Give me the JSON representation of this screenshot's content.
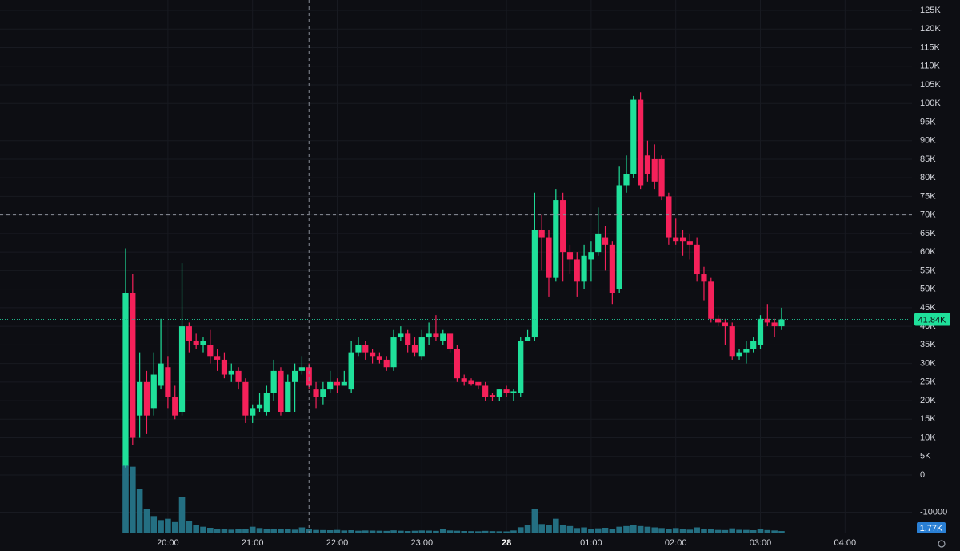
{
  "chart_data": {
    "type": "candlestick",
    "categories": [
      "19:30",
      "19:35",
      "19:40",
      "19:45",
      "19:50",
      "19:55",
      "20:00",
      "20:05",
      "20:10",
      "20:15",
      "20:20",
      "20:25",
      "20:30",
      "20:35",
      "20:40",
      "20:45",
      "20:50",
      "20:55",
      "21:00",
      "21:05",
      "21:10",
      "21:15",
      "21:20",
      "21:25",
      "21:30",
      "21:35",
      "21:40",
      "21:45",
      "21:50",
      "21:55",
      "22:00",
      "22:05",
      "22:10",
      "22:15",
      "22:20",
      "22:25",
      "22:30",
      "22:35",
      "22:40",
      "22:45",
      "22:50",
      "22:55",
      "23:00",
      "23:05",
      "23:10",
      "23:15",
      "23:20",
      "23:25",
      "23:30",
      "23:35",
      "23:40",
      "23:45",
      "23:50",
      "23:55",
      "00:00",
      "00:05",
      "00:10",
      "00:15",
      "00:20",
      "00:25",
      "00:30",
      "00:35",
      "00:40",
      "00:45",
      "00:50",
      "00:55",
      "01:00",
      "01:05",
      "01:10",
      "01:15",
      "01:20",
      "01:25",
      "01:30",
      "01:35",
      "01:40",
      "01:45",
      "01:50",
      "01:55",
      "02:00",
      "02:05",
      "02:10",
      "02:15",
      "02:20",
      "02:25",
      "02:30",
      "02:35",
      "02:40",
      "02:45",
      "02:50",
      "02:55",
      "03:00",
      "03:05",
      "03:10",
      "03:15"
    ],
    "open": [
      2500,
      49000,
      16000,
      25000,
      18000,
      24000,
      29000,
      21000,
      17000,
      40000,
      36000,
      35000,
      35000,
      32000,
      31000,
      27000,
      28000,
      25000,
      16000,
      18000,
      17000,
      22000,
      28000,
      17000,
      25000,
      28000,
      29000,
      23000,
      21000,
      23000,
      25000,
      24000,
      23000,
      33000,
      35000,
      33000,
      32000,
      31000,
      29000,
      37000,
      38000,
      35000,
      32000,
      37000,
      38000,
      36000,
      38000,
      34000,
      26000,
      25500,
      25000,
      24000,
      21500,
      21000,
      23000,
      22000,
      22000,
      36000,
      37000,
      66000,
      64000,
      53000,
      74000,
      60000,
      58000,
      52000,
      58000,
      60000,
      64000,
      62000,
      50000,
      78000,
      81000,
      101000,
      86000,
      85000,
      85000,
      75000,
      64000,
      64000,
      63000,
      62000,
      54000,
      52000,
      42000,
      41000,
      40000,
      32000,
      33000,
      34000,
      35000,
      42000,
      41000,
      40000
    ],
    "high": [
      61000,
      54000,
      33000,
      28000,
      33000,
      42000,
      32000,
      24000,
      57000,
      41000,
      38000,
      37000,
      39000,
      34000,
      33000,
      30000,
      29000,
      26000,
      19000,
      22000,
      24000,
      31000,
      29000,
      27000,
      30000,
      32000,
      30000,
      25000,
      25000,
      28000,
      26000,
      28000,
      36000,
      37000,
      36000,
      34000,
      33000,
      32000,
      39000,
      40000,
      39000,
      37000,
      39000,
      41000,
      43000,
      39000,
      38000,
      35000,
      27000,
      26000,
      25000,
      25000,
      22000,
      23000,
      24000,
      23000,
      37000,
      39000,
      76000,
      70000,
      66000,
      77000,
      76000,
      62000,
      60000,
      62000,
      63000,
      72000,
      67000,
      63000,
      83000,
      86000,
      102000,
      103000,
      90000,
      89000,
      86000,
      76000,
      69000,
      66000,
      65000,
      64000,
      56000,
      53000,
      43000,
      42000,
      41000,
      34000,
      36000,
      37000,
      43000,
      46000,
      42000,
      45000
    ],
    "low": [
      2000,
      8000,
      10000,
      11000,
      16000,
      23000,
      18000,
      15000,
      16000,
      33000,
      34000,
      33000,
      30000,
      28000,
      26000,
      25000,
      23000,
      14000,
      14000,
      17000,
      16000,
      20000,
      16000,
      17000,
      17000,
      27000,
      23000,
      18000,
      19000,
      22000,
      22000,
      24000,
      22000,
      32000,
      31000,
      30000,
      30000,
      28000,
      28000,
      36000,
      33000,
      32000,
      31000,
      35000,
      36000,
      35000,
      33000,
      25000,
      24000,
      24000,
      23000,
      20000,
      20000,
      20000,
      21000,
      20000,
      21000,
      36000,
      36000,
      55000,
      48000,
      52000,
      52000,
      54000,
      48000,
      50000,
      52000,
      59000,
      55000,
      46000,
      49000,
      76000,
      80000,
      77000,
      79000,
      77000,
      74000,
      62000,
      62000,
      59000,
      58000,
      52000,
      47000,
      41000,
      40000,
      35000,
      31000,
      31000,
      30000,
      33000,
      34000,
      40000,
      37000,
      39000
    ],
    "close": [
      49000,
      10000,
      25000,
      16000,
      27000,
      30000,
      21000,
      16000,
      40000,
      36000,
      35000,
      36000,
      32000,
      31000,
      27000,
      28000,
      25000,
      16000,
      18000,
      19000,
      22000,
      28000,
      17000,
      25000,
      28000,
      29000,
      24000,
      21000,
      23000,
      25000,
      24000,
      25000,
      33000,
      35000,
      33000,
      32000,
      31000,
      29000,
      37000,
      38000,
      35000,
      33000,
      37000,
      38000,
      37000,
      38000,
      34000,
      26000,
      25000,
      24500,
      24000,
      21000,
      21000,
      23000,
      22000,
      22500,
      36000,
      37000,
      66000,
      64000,
      53000,
      74000,
      60000,
      58000,
      52000,
      59000,
      60000,
      65000,
      62000,
      49000,
      78000,
      81000,
      101000,
      78000,
      81000,
      79000,
      75000,
      64000,
      63000,
      63000,
      62000,
      54000,
      52000,
      42000,
      41000,
      40000,
      32000,
      33000,
      34000,
      36000,
      42000,
      41000,
      40000,
      41840
    ],
    "volume": [
      51000,
      50000,
      33000,
      18000,
      13000,
      10000,
      11000,
      8500,
      27000,
      9000,
      6000,
      5000,
      4200,
      3600,
      3000,
      2800,
      3200,
      3000,
      5000,
      4000,
      3500,
      3600,
      3200,
      3000,
      2800,
      4500,
      3000,
      2600,
      2500,
      2400,
      2600,
      2200,
      2400,
      2000,
      2200,
      2100,
      2000,
      1900,
      2300,
      2000,
      1800,
      2000,
      2200,
      2100,
      1900,
      3500,
      2200,
      2000,
      1800,
      1700,
      1600,
      1900,
      1700,
      1600,
      1500,
      2200,
      4600,
      6000,
      18000,
      7000,
      6500,
      11000,
      6000,
      5500,
      4000,
      4500,
      3500,
      3800,
      4200,
      3000,
      5000,
      5500,
      6000,
      5500,
      5000,
      4500,
      4000,
      3000,
      4000,
      3000,
      2800,
      4500,
      3200,
      3500,
      2600,
      2500,
      3800,
      2700,
      2600,
      2400,
      3000,
      2500,
      2200,
      1770
    ],
    "up_color": "#1fe09a",
    "down_color": "#f5215a",
    "volume_color": "#246f82",
    "ylim": [
      -15700,
      127800
    ],
    "yticks": [
      {
        "value": 125000,
        "label": "125K"
      },
      {
        "value": 120000,
        "label": "120K"
      },
      {
        "value": 115000,
        "label": "115K"
      },
      {
        "value": 110000,
        "label": "110K"
      },
      {
        "value": 105000,
        "label": "105K"
      },
      {
        "value": 100000,
        "label": "100K"
      },
      {
        "value": 95000,
        "label": "95K"
      },
      {
        "value": 90000,
        "label": "90K"
      },
      {
        "value": 85000,
        "label": "85K"
      },
      {
        "value": 80000,
        "label": "80K"
      },
      {
        "value": 75000,
        "label": "75K"
      },
      {
        "value": 70000,
        "label": "70K"
      },
      {
        "value": 65000,
        "label": "65K"
      },
      {
        "value": 60000,
        "label": "60K"
      },
      {
        "value": 55000,
        "label": "55K"
      },
      {
        "value": 50000,
        "label": "50K"
      },
      {
        "value": 45000,
        "label": "45K"
      },
      {
        "value": 40000,
        "label": "40K"
      },
      {
        "value": 35000,
        "label": "35K"
      },
      {
        "value": 30000,
        "label": "30K"
      },
      {
        "value": 25000,
        "label": "25K"
      },
      {
        "value": 20000,
        "label": "20K"
      },
      {
        "value": 15000,
        "label": "15K"
      },
      {
        "value": 10000,
        "label": "10K"
      },
      {
        "value": 5000,
        "label": "5K"
      },
      0,
      -10000
    ],
    "volume_lim": [
      0,
      60000
    ],
    "xticks": [
      "20:00",
      "21:00",
      "22:00",
      "23:00",
      {
        "value": "00:00",
        "label": "28"
      },
      "01:00",
      "02:00",
      "03:00",
      "04:00"
    ],
    "price_line": {
      "value": 41840,
      "label": "41.84K"
    },
    "volume_line": {
      "value": 1770,
      "label": "1.77K"
    },
    "crosshair": {
      "x": "21:40",
      "y": 70000
    },
    "grid": true
  }
}
